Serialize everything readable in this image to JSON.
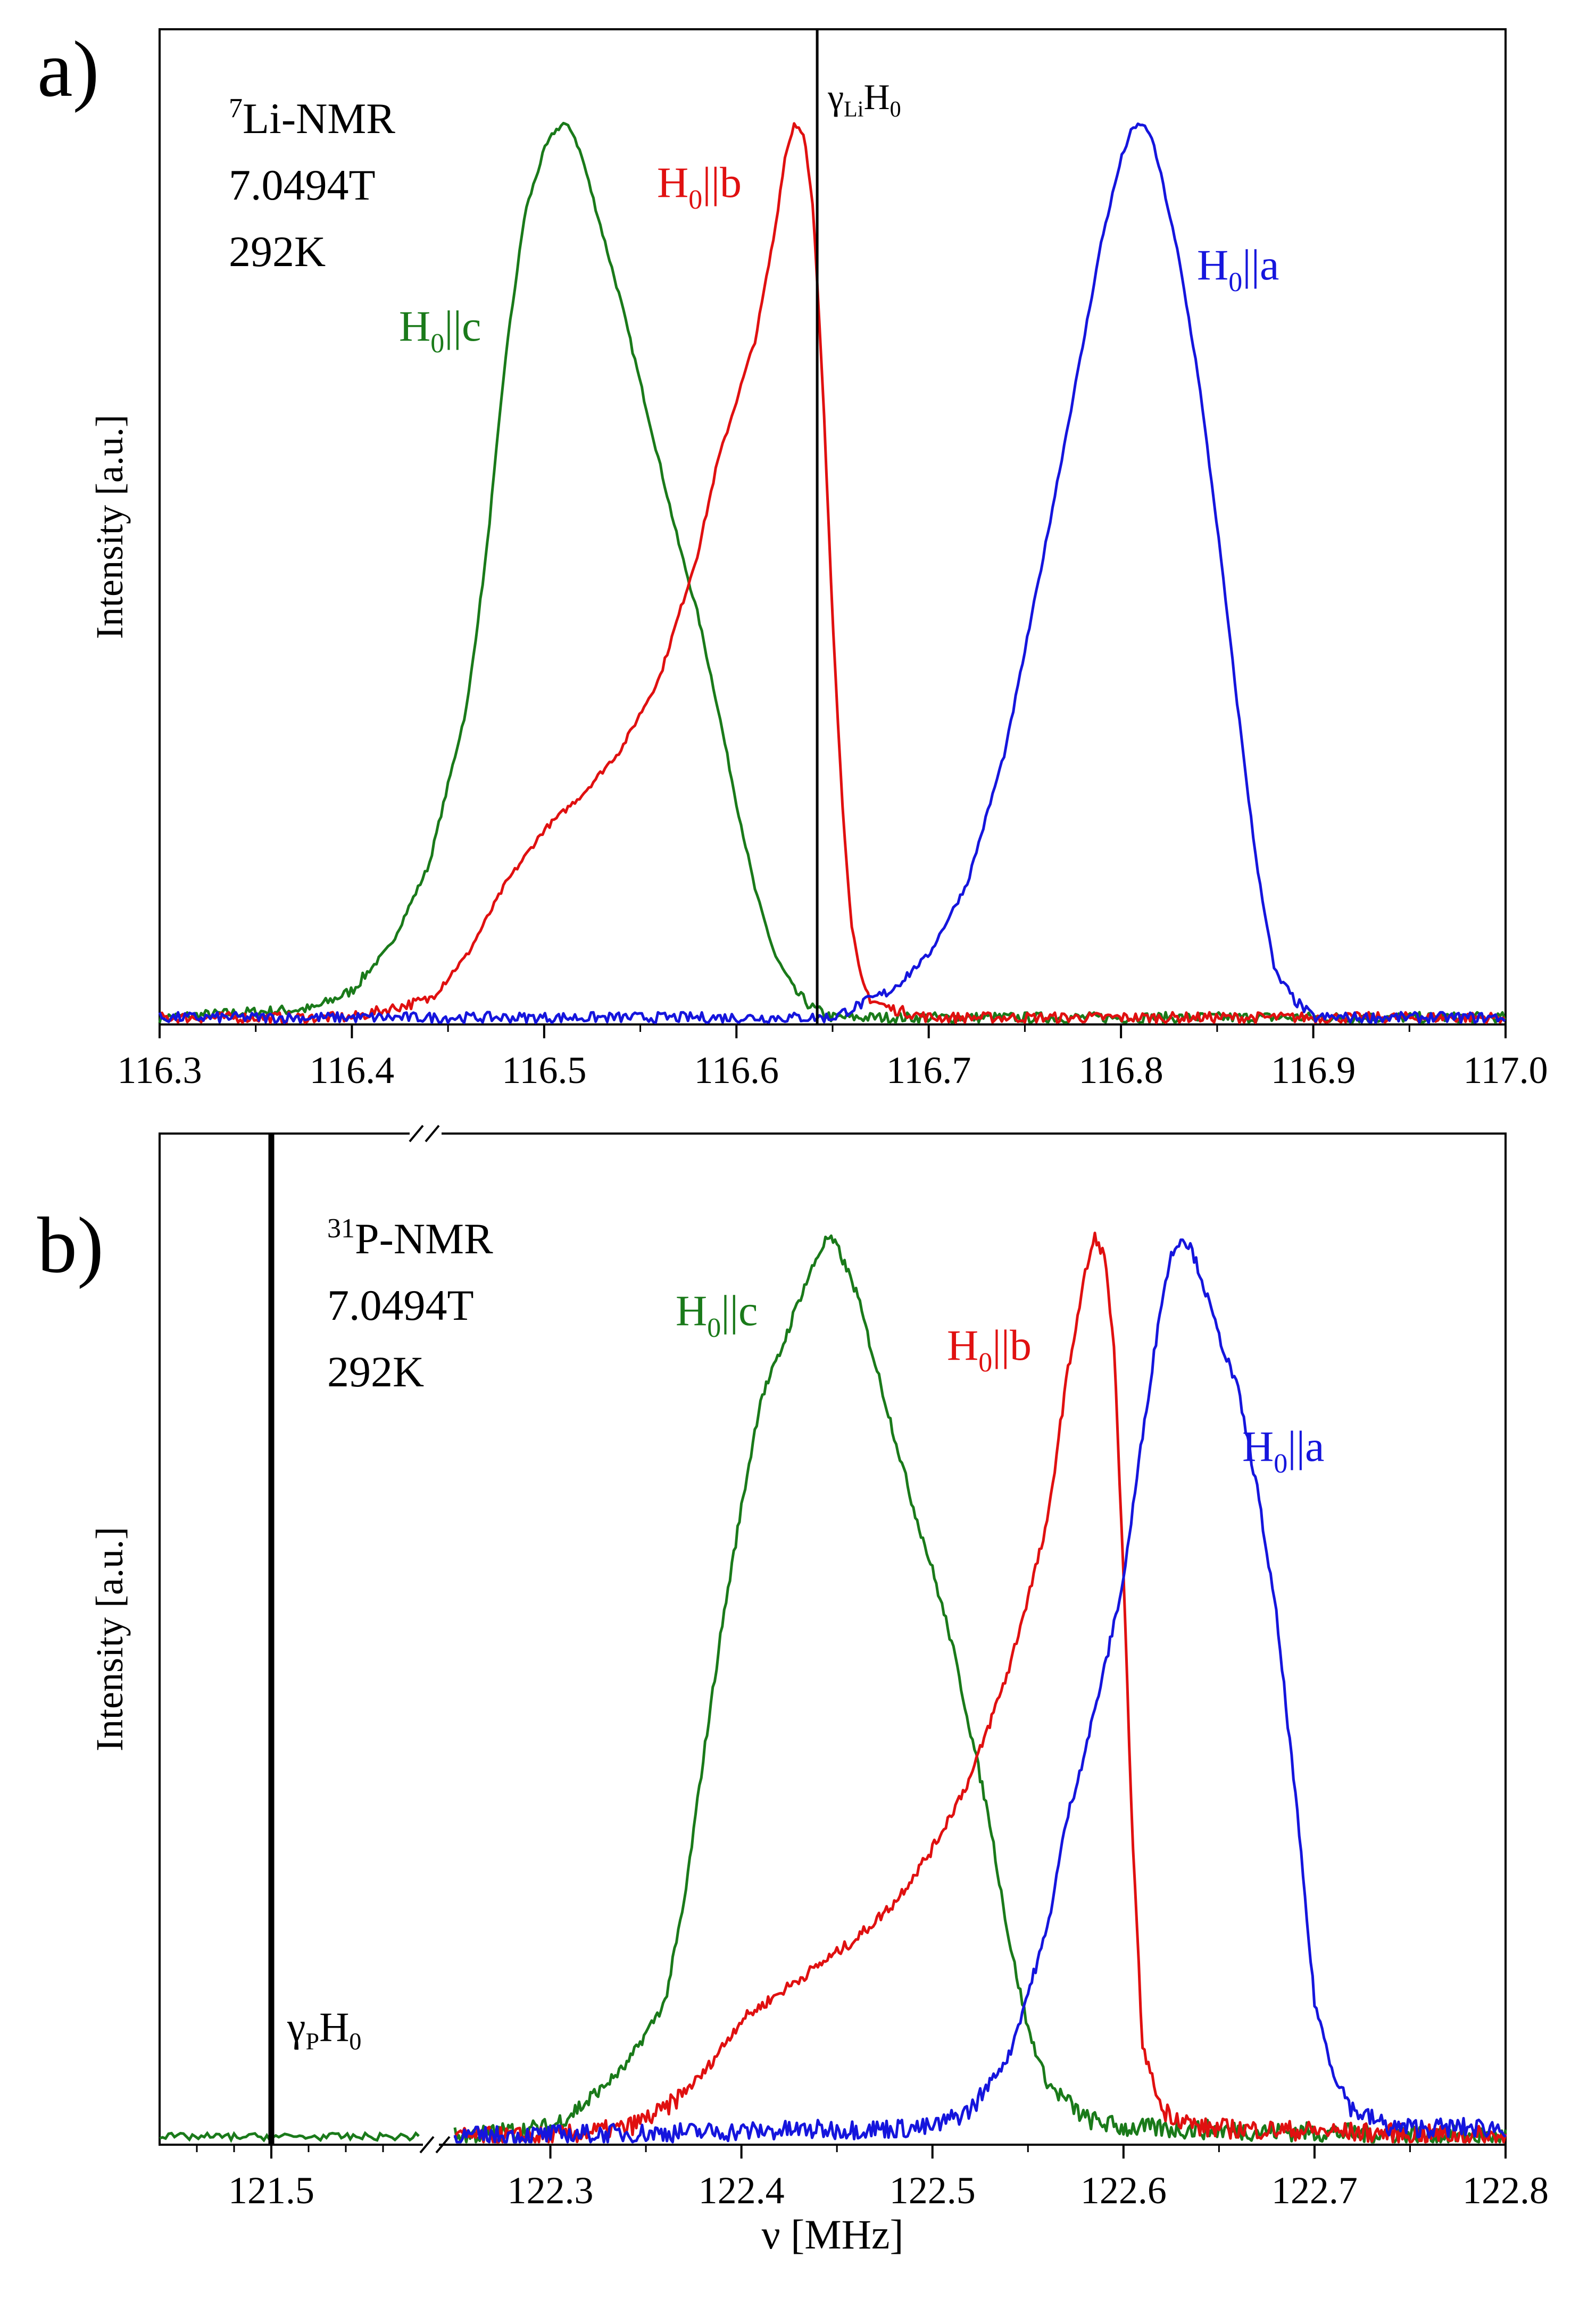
{
  "figure": {
    "xlabel": "ν [MHz]",
    "colors": {
      "green": "#1a7a1a",
      "red": "#e01010",
      "blue": "#1515dd",
      "axis": "#000000"
    }
  },
  "chart_data": [
    {
      "type": "line",
      "panel_label": "a)",
      "xlabel": "",
      "ylabel": "Intensity [a.u.]",
      "xlim": [
        116.3,
        117.0
      ],
      "ylim": [
        0,
        1.04
      ],
      "xticks": [
        116.3,
        116.4,
        116.5,
        116.6,
        116.7,
        116.8,
        116.9,
        117.0
      ],
      "xtick_labels": [
        "116.3",
        "116.4",
        "116.5",
        "116.6",
        "116.7",
        "116.8",
        "116.9",
        "117.0"
      ],
      "info": {
        "nucleus_sup": "7",
        "nucleus_main": "Li-NMR",
        "field": "7.0494T",
        "temperature": "292K"
      },
      "reference_line": {
        "x": 116.642,
        "label_main": "γ",
        "label_sub": "Li",
        "label_main2": "H",
        "label_sub2": "0"
      },
      "series": [
        {
          "name": "H0||c",
          "label_main": "H",
          "label_sub": "0",
          "label_tail": "||c",
          "color": "green",
          "x": [
            116.3,
            116.38,
            116.4,
            116.42,
            116.44,
            116.46,
            116.47,
            116.48,
            116.49,
            116.5,
            116.505,
            116.51,
            116.515,
            116.52,
            116.53,
            116.54,
            116.55,
            116.56,
            116.57,
            116.58,
            116.59,
            116.6,
            116.61,
            116.62,
            116.63,
            116.64,
            116.65,
            117.0
          ],
          "y": [
            0.0,
            0.01,
            0.03,
            0.08,
            0.17,
            0.35,
            0.52,
            0.74,
            0.9,
            0.97,
            0.99,
            1.0,
            0.99,
            0.96,
            0.88,
            0.8,
            0.71,
            0.62,
            0.53,
            0.45,
            0.35,
            0.24,
            0.14,
            0.07,
            0.03,
            0.01,
            0.0,
            0.0
          ]
        },
        {
          "name": "H0||b",
          "label_main": "H",
          "label_sub": "0",
          "label_tail": "||b",
          "color": "red",
          "x": [
            116.3,
            116.4,
            116.42,
            116.44,
            116.46,
            116.48,
            116.5,
            116.52,
            116.54,
            116.56,
            116.58,
            116.59,
            116.6,
            116.61,
            116.62,
            116.625,
            116.63,
            116.635,
            116.64,
            116.645,
            116.65,
            116.655,
            116.66,
            116.665,
            116.67,
            116.68,
            116.7,
            117.0
          ],
          "y": [
            0.0,
            0.0,
            0.01,
            0.02,
            0.07,
            0.15,
            0.21,
            0.25,
            0.3,
            0.38,
            0.52,
            0.62,
            0.69,
            0.76,
            0.88,
            0.96,
            1.0,
            0.99,
            0.9,
            0.7,
            0.45,
            0.24,
            0.1,
            0.04,
            0.02,
            0.01,
            0.0,
            0.0
          ]
        },
        {
          "name": "H0||a",
          "label_main": "H",
          "label_sub": "0",
          "label_tail": "||a",
          "color": "blue",
          "x": [
            116.3,
            116.65,
            116.66,
            116.68,
            116.7,
            116.72,
            116.74,
            116.76,
            116.78,
            116.79,
            116.8,
            116.805,
            116.81,
            116.815,
            116.82,
            116.83,
            116.84,
            116.85,
            116.86,
            116.87,
            116.88,
            116.89,
            116.9,
            117.0
          ],
          "y": [
            0.0,
            0.0,
            0.01,
            0.03,
            0.07,
            0.15,
            0.3,
            0.52,
            0.75,
            0.87,
            0.96,
            0.99,
            1.0,
            0.99,
            0.95,
            0.85,
            0.72,
            0.55,
            0.36,
            0.18,
            0.05,
            0.02,
            0.0,
            0.0
          ]
        }
      ]
    },
    {
      "type": "line",
      "panel_label": "b)",
      "xlabel": "ν [MHz]",
      "ylabel": "Intensity [a.u.]",
      "xlim": [
        122.25,
        122.8
      ],
      "ylim": [
        0,
        1.04
      ],
      "axis_break": {
        "broken_axis_left_range": [
          121.35,
          121.7
        ],
        "break_between": [
          121.7,
          122.25
        ]
      },
      "xticks": [
        121.5,
        122.3,
        122.4,
        122.5,
        122.6,
        122.7,
        122.8
      ],
      "xtick_labels": [
        "121.5",
        "122.3",
        "122.4",
        "122.5",
        "122.6",
        "122.7",
        "122.8"
      ],
      "info": {
        "nucleus_sup": "31",
        "nucleus_main": "P-NMR",
        "field": "7.0494T",
        "temperature": "292K"
      },
      "reference_line": {
        "x": 121.5,
        "label_main": "γ",
        "label_sub": "P",
        "label_main2": "H",
        "label_sub2": "0"
      },
      "series": [
        {
          "name": "H0||c",
          "label_main": "H",
          "label_sub": "0",
          "label_tail": "||c",
          "color": "green",
          "x": [
            122.25,
            122.3,
            122.32,
            122.34,
            122.36,
            122.37,
            122.38,
            122.39,
            122.4,
            122.41,
            122.42,
            122.43,
            122.44,
            122.445,
            122.45,
            122.46,
            122.47,
            122.48,
            122.49,
            122.5,
            122.51,
            122.52,
            122.53,
            122.54,
            122.55,
            122.56,
            122.58,
            122.6,
            122.8
          ],
          "y": [
            0.0,
            0.01,
            0.04,
            0.08,
            0.15,
            0.26,
            0.42,
            0.57,
            0.7,
            0.82,
            0.87,
            0.93,
            0.98,
            1.0,
            0.99,
            0.94,
            0.86,
            0.78,
            0.7,
            0.63,
            0.55,
            0.45,
            0.35,
            0.22,
            0.12,
            0.06,
            0.02,
            0.01,
            0.0
          ]
        },
        {
          "name": "H0||b",
          "label_main": "H",
          "label_sub": "0",
          "label_tail": "||b",
          "color": "red",
          "x": [
            122.25,
            122.3,
            122.34,
            122.36,
            122.38,
            122.4,
            122.42,
            122.44,
            122.46,
            122.48,
            122.5,
            122.52,
            122.54,
            122.56,
            122.57,
            122.58,
            122.585,
            122.59,
            122.595,
            122.6,
            122.605,
            122.61,
            122.62,
            122.64,
            122.8
          ],
          "y": [
            0.0,
            0.0,
            0.01,
            0.03,
            0.07,
            0.13,
            0.16,
            0.19,
            0.22,
            0.26,
            0.32,
            0.4,
            0.52,
            0.68,
            0.84,
            0.96,
            1.0,
            0.98,
            0.88,
            0.62,
            0.32,
            0.1,
            0.03,
            0.01,
            0.0
          ]
        },
        {
          "name": "H0||a",
          "label_main": "H",
          "label_sub": "0",
          "label_tail": "||a",
          "color": "blue",
          "x": [
            122.25,
            122.5,
            122.52,
            122.54,
            122.56,
            122.57,
            122.58,
            122.59,
            122.6,
            122.61,
            122.62,
            122.625,
            122.63,
            122.635,
            122.64,
            122.65,
            122.66,
            122.67,
            122.68,
            122.69,
            122.7,
            122.71,
            122.72,
            122.74,
            122.8
          ],
          "y": [
            0.0,
            0.01,
            0.03,
            0.09,
            0.23,
            0.35,
            0.43,
            0.52,
            0.62,
            0.78,
            0.93,
            0.98,
            1.0,
            0.99,
            0.96,
            0.89,
            0.83,
            0.72,
            0.58,
            0.38,
            0.15,
            0.07,
            0.03,
            0.01,
            0.01
          ]
        }
      ]
    }
  ]
}
